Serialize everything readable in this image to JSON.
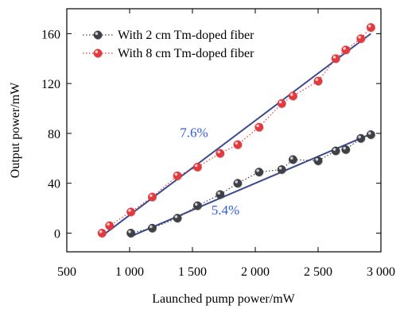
{
  "chart_data": {
    "type": "scatter",
    "xlabel": "Launched pump power/mW",
    "ylabel": "Output power/mW",
    "xlim": [
      500,
      3000
    ],
    "ylim": [
      -15,
      180
    ],
    "xticks": [
      500,
      1000,
      1500,
      2000,
      2500,
      3000
    ],
    "xtick_labels": [
      "500",
      "1 000",
      "1 500",
      "2 000",
      "2 500",
      "3 000"
    ],
    "yticks": [
      0,
      40,
      80,
      120,
      160
    ],
    "ytick_labels": [
      "0",
      "40",
      "80",
      "120",
      "160"
    ],
    "grid": false,
    "legend": "top-left",
    "series": [
      {
        "name": "With 2 cm Tm-doped fiber",
        "color": "#3f4147",
        "marker": "circle",
        "line": "dotted",
        "x": [
          1010,
          1180,
          1380,
          1540,
          1720,
          1860,
          2030,
          2210,
          2300,
          2500,
          2640,
          2720,
          2840,
          2920
        ],
        "y": [
          0,
          4,
          12,
          22,
          31,
          40,
          49,
          51,
          59,
          58,
          66,
          67,
          76,
          79
        ],
        "fit": {
          "x": [
            1000,
            2930
          ],
          "y": [
            -3,
            80
          ]
        }
      },
      {
        "name": "With 8 cm Tm-doped fiber",
        "color": "#e23a3e",
        "marker": "circle",
        "line": "dotted",
        "x": [
          780,
          840,
          1010,
          1180,
          1380,
          1540,
          1720,
          1860,
          2030,
          2210,
          2300,
          2500,
          2640,
          2720,
          2840,
          2920
        ],
        "y": [
          0,
          6,
          17,
          29,
          46,
          53,
          64,
          71,
          85,
          104,
          110,
          122,
          140,
          147,
          156,
          165
        ],
        "fit": {
          "x": [
            770,
            2920
          ],
          "y": [
            -3,
            160
          ]
        }
      }
    ],
    "annotations": [
      {
        "text": "7.6%",
        "x": 1400,
        "y": 77,
        "color": "#2e5bdb"
      },
      {
        "text": "5.4%",
        "x": 1650,
        "y": 15,
        "color": "#2e5bdb"
      }
    ]
  }
}
